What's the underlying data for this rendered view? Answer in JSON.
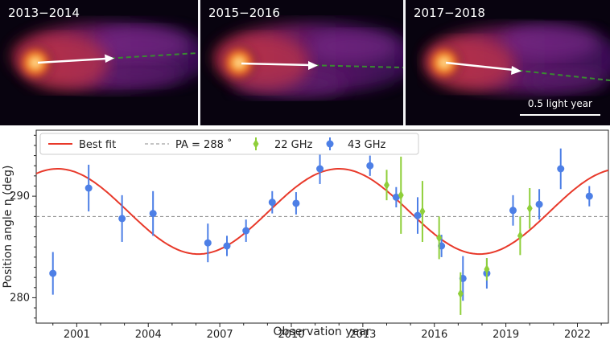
{
  "panels": [
    {
      "label": "2013−2014",
      "arrow_angle": -3,
      "dash_angle": -4
    },
    {
      "label": "2015−2016",
      "arrow_angle": 1.5,
      "dash_angle": 1.5
    },
    {
      "label": "2017−2018",
      "arrow_angle": 7,
      "dash_angle": 7
    }
  ],
  "scale_label": "0.5 light year",
  "colors": {
    "fit": "#e8392a",
    "ghz22": "#8fcf3a",
    "ghz43": "#4d7fe6",
    "pa_line": "#888888"
  },
  "chart_data": {
    "type": "scatter",
    "xlabel": "Observation year",
    "ylabel": "Position angle η (deg)",
    "xlim": [
      1999.3,
      2023.3
    ],
    "ylim": [
      277.5,
      296.5
    ],
    "xticks": [
      2001,
      2004,
      2007,
      2010,
      2013,
      2016,
      2019,
      2022
    ],
    "yticks": [
      280,
      290
    ],
    "legend": {
      "fit": "Best fit",
      "pa": "PA = 288 ˚",
      "ghz22": "22 GHz",
      "ghz43": "43 GHz"
    },
    "pa_line": 288,
    "best_fit": {
      "mean": 288.5,
      "amplitude": 4.2,
      "period": 11.8,
      "peak_year": 2000.2
    },
    "series": [
      {
        "name": "43 GHz",
        "points": [
          {
            "x": 2000.0,
            "y": 282.4,
            "err": 2.1
          },
          {
            "x": 2001.5,
            "y": 290.8,
            "err": 2.3
          },
          {
            "x": 2002.9,
            "y": 287.8,
            "err": 2.3
          },
          {
            "x": 2004.2,
            "y": 288.3,
            "err": 2.2
          },
          {
            "x": 2006.5,
            "y": 285.4,
            "err": 1.9
          },
          {
            "x": 2007.3,
            "y": 285.1,
            "err": 1.0
          },
          {
            "x": 2008.1,
            "y": 286.6,
            "err": 1.1
          },
          {
            "x": 2009.2,
            "y": 289.4,
            "err": 1.1
          },
          {
            "x": 2010.2,
            "y": 289.3,
            "err": 1.1
          },
          {
            "x": 2011.2,
            "y": 292.7,
            "err": 1.5
          },
          {
            "x": 2013.3,
            "y": 293.0,
            "err": 1.0
          },
          {
            "x": 2014.4,
            "y": 289.9,
            "err": 1.0
          },
          {
            "x": 2015.3,
            "y": 288.1,
            "err": 1.8
          },
          {
            "x": 2016.3,
            "y": 285.1,
            "err": 1.1
          },
          {
            "x": 2017.2,
            "y": 281.9,
            "err": 2.2
          },
          {
            "x": 2018.2,
            "y": 282.4,
            "err": 1.5
          },
          {
            "x": 2019.3,
            "y": 288.6,
            "err": 1.5
          },
          {
            "x": 2020.4,
            "y": 289.2,
            "err": 1.5
          },
          {
            "x": 2021.3,
            "y": 292.7,
            "err": 2.0
          },
          {
            "x": 2022.5,
            "y": 290.0,
            "err": 1.0
          }
        ]
      },
      {
        "name": "22 GHz",
        "points": [
          {
            "x": 2014.0,
            "y": 291.1,
            "err": 1.5
          },
          {
            "x": 2014.6,
            "y": 290.1,
            "err": 3.8
          },
          {
            "x": 2015.5,
            "y": 288.5,
            "err": 3.0
          },
          {
            "x": 2016.2,
            "y": 285.9,
            "err": 2.1
          },
          {
            "x": 2017.1,
            "y": 280.4,
            "err": 2.1
          },
          {
            "x": 2018.2,
            "y": 282.8,
            "err": 1.1
          },
          {
            "x": 2019.6,
            "y": 286.1,
            "err": 1.9
          },
          {
            "x": 2020.0,
            "y": 288.8,
            "err": 2.0
          }
        ]
      }
    ]
  }
}
